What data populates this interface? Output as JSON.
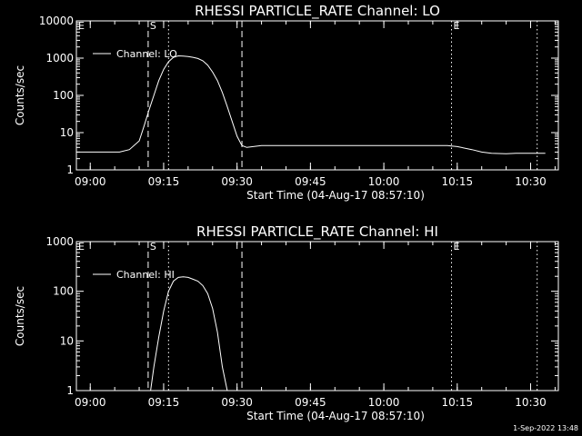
{
  "chart_data": [
    {
      "type": "line",
      "title": "RHESSI PARTICLE_RATE Channel: LO",
      "xlabel": "Start Time (04-Aug-17 08:57:10)",
      "ylabel": "Counts/sec",
      "yscale": "log",
      "ylim": [
        1,
        10000
      ],
      "xlim": [
        "08:57:10",
        "10:35:40"
      ],
      "x_tick_labels": [
        "09:00",
        "09:15",
        "09:30",
        "09:45",
        "10:00",
        "10:15",
        "10:30"
      ],
      "y_tick_labels": [
        "1",
        "10",
        "100",
        "1000",
        "10000"
      ],
      "legend": {
        "position": "top-left",
        "entries": [
          "Channel: LO"
        ]
      },
      "markers": [
        {
          "label": "E",
          "time": "08:57:10",
          "style": "none"
        },
        {
          "label": "S",
          "time": "09:11:50",
          "style": "dashed"
        },
        {
          "label": "",
          "time": "09:16:00",
          "style": "dotted"
        },
        {
          "label": "",
          "time": "09:31:00",
          "style": "dashed"
        },
        {
          "label": "E",
          "time": "10:13:50",
          "style": "dotted"
        },
        {
          "label": "",
          "time": "10:31:20",
          "style": "dotted"
        }
      ],
      "series": [
        {
          "name": "Channel: LO",
          "x": [
            "08:57:10",
            "09:00:00",
            "09:03:00",
            "09:06:00",
            "09:08:00",
            "09:10:00",
            "09:11:00",
            "09:12:00",
            "09:13:00",
            "09:14:00",
            "09:15:00",
            "09:16:00",
            "09:17:00",
            "09:18:00",
            "09:19:00",
            "09:20:00",
            "09:21:00",
            "09:22:00",
            "09:23:00",
            "09:24:00",
            "09:25:00",
            "09:26:00",
            "09:27:00",
            "09:28:00",
            "09:29:00",
            "09:30:00",
            "09:31:00",
            "09:32:00",
            "09:35:00",
            "09:40:00",
            "09:45:00",
            "09:50:00",
            "09:55:00",
            "10:00:00",
            "10:05:00",
            "10:10:00",
            "10:13:00",
            "10:15:00",
            "10:18:00",
            "10:20:00",
            "10:22:00",
            "10:25:00",
            "10:27:00",
            "10:30:00",
            "10:33:00"
          ],
          "values": [
            3,
            3,
            3,
            3,
            3.5,
            6,
            15,
            40,
            100,
            250,
            500,
            800,
            1050,
            1150,
            1130,
            1100,
            1050,
            980,
            850,
            650,
            420,
            250,
            120,
            50,
            20,
            8,
            4.5,
            4,
            4.5,
            4.5,
            4.5,
            4.5,
            4.5,
            4.5,
            4.5,
            4.5,
            4.5,
            4.2,
            3.5,
            3,
            2.8,
            2.7,
            2.8,
            2.8,
            2.8
          ]
        }
      ]
    },
    {
      "type": "line",
      "title": "RHESSI PARTICLE_RATE Channel: HI",
      "xlabel": "Start Time (04-Aug-17 08:57:10)",
      "ylabel": "Counts/sec",
      "yscale": "log",
      "ylim": [
        1,
        1000
      ],
      "xlim": [
        "08:57:10",
        "10:35:40"
      ],
      "x_tick_labels": [
        "09:00",
        "09:15",
        "09:30",
        "09:45",
        "10:00",
        "10:15",
        "10:30"
      ],
      "y_tick_labels": [
        "1",
        "10",
        "100",
        "1000"
      ],
      "legend": {
        "position": "top-left",
        "entries": [
          "Channel: HI"
        ]
      },
      "markers": [
        {
          "label": "E",
          "time": "08:57:10",
          "style": "none"
        },
        {
          "label": "S",
          "time": "09:11:50",
          "style": "dashed"
        },
        {
          "label": "",
          "time": "09:16:00",
          "style": "dotted"
        },
        {
          "label": "",
          "time": "09:31:00",
          "style": "dashed"
        },
        {
          "label": "E",
          "time": "10:13:50",
          "style": "dotted"
        },
        {
          "label": "",
          "time": "10:31:20",
          "style": "dotted"
        }
      ],
      "series": [
        {
          "name": "Channel: HI",
          "x": [
            "09:12:20",
            "09:13:00",
            "09:14:00",
            "09:15:00",
            "09:16:00",
            "09:17:00",
            "09:18:00",
            "09:19:00",
            "09:20:00",
            "09:21:00",
            "09:22:00",
            "09:23:00",
            "09:24:00",
            "09:25:00",
            "09:26:00",
            "09:27:00",
            "09:28:00"
          ],
          "values": [
            1,
            3,
            12,
            40,
            100,
            160,
            190,
            195,
            190,
            175,
            160,
            130,
            90,
            45,
            15,
            3,
            1
          ]
        }
      ]
    }
  ],
  "footer": {
    "timestamp": "1-Sep-2022 13:48"
  }
}
